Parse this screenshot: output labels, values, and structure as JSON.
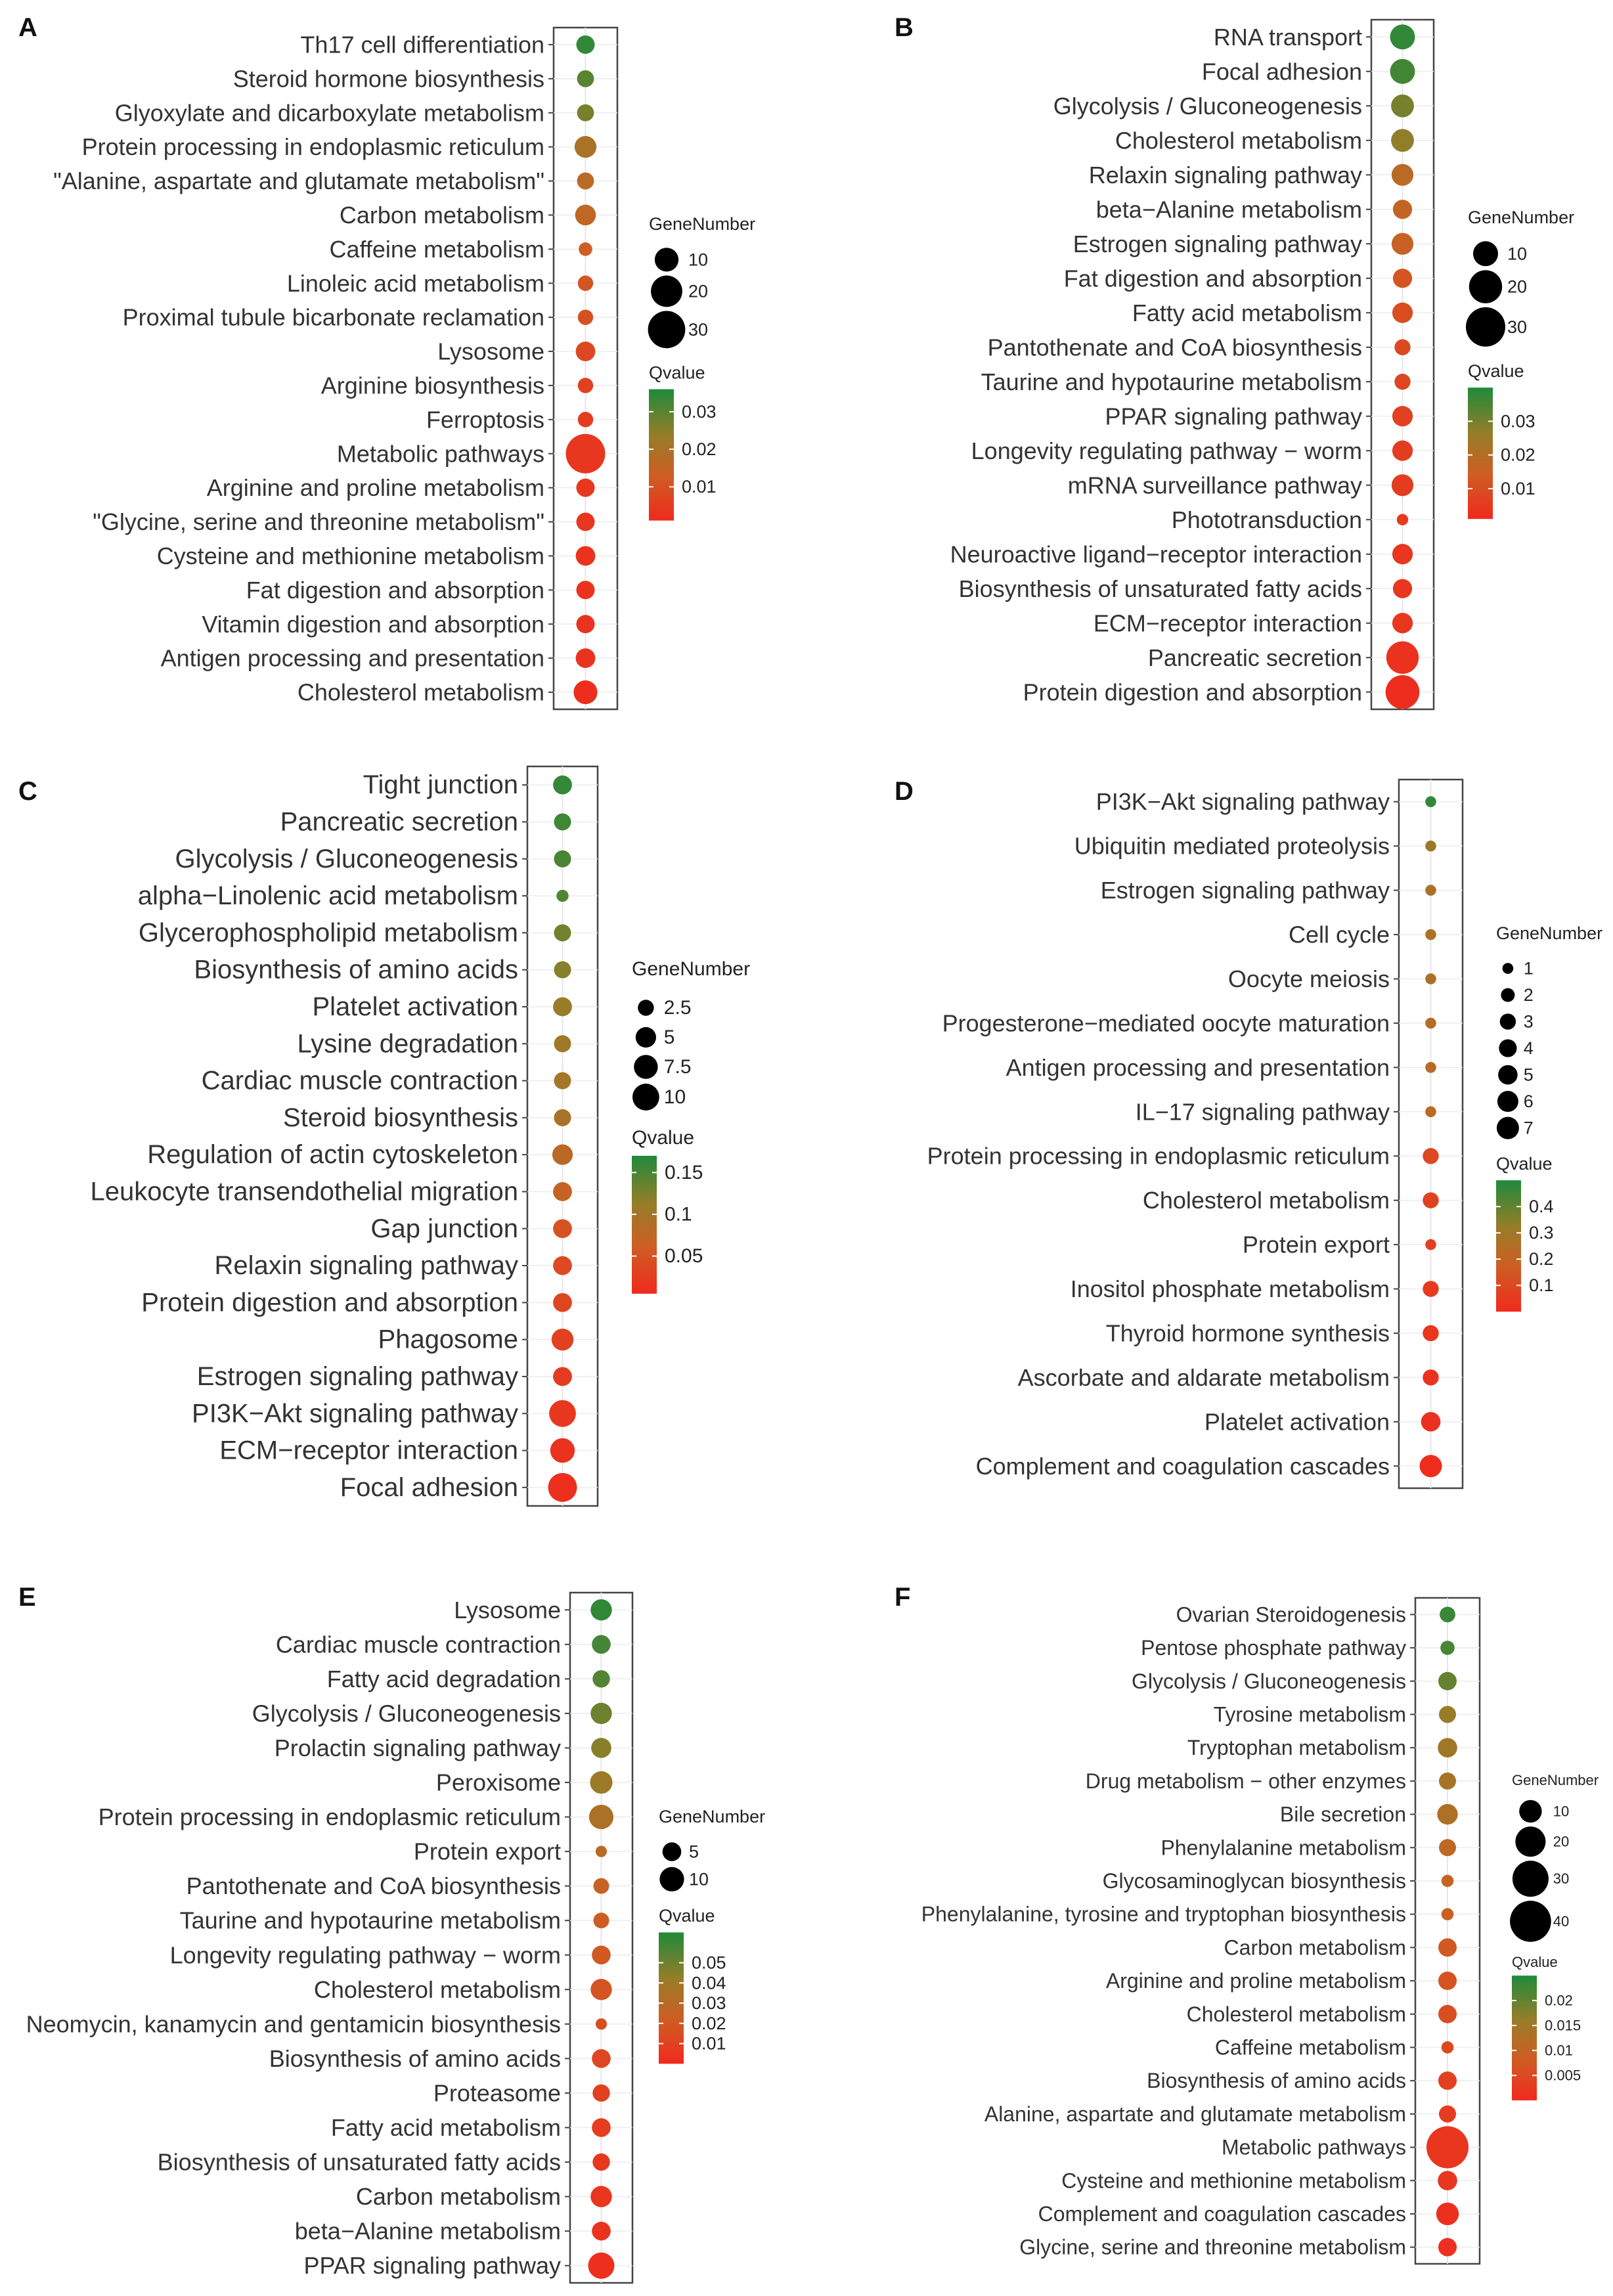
{
  "colors": {
    "high_q": "#1f8a3b",
    "mid_q": "#a8781f",
    "low_q": "#f02a1e",
    "axis": "#444444"
  },
  "legend_titles": {
    "size": "GeneNumber",
    "color": "Qvalue"
  },
  "chart_data": [
    {
      "panel": "A",
      "type": "scatter",
      "categories": [
        "Th17 cell differentiation",
        "Steroid hormone biosynthesis",
        "Glyoxylate and dicarboxylate metabolism",
        "Protein processing in endoplasmic reticulum",
        "\"Alanine, aspartate and glutamate metabolism\"",
        "Carbon metabolism",
        "Caffeine metabolism",
        "Linoleic acid metabolism",
        "Proximal tubule bicarbonate reclamation",
        "Lysosome",
        "Arginine biosynthesis",
        "Ferroptosis",
        "Metabolic pathways",
        "Arginine and proline metabolism",
        "\"Glycine, serine and threonine metabolism\"",
        "Cysteine and methionine metabolism",
        "Fat digestion and absorption",
        "Vitamin digestion and absorption",
        "Antigen processing and presentation",
        "Cholesterol metabolism"
      ],
      "gene_number": [
        5,
        4,
        4,
        8,
        4,
        7,
        2,
        3,
        3,
        6,
        3,
        3,
        34,
        5,
        5,
        6,
        5,
        5,
        6,
        10
      ],
      "qvalue": [
        0.034,
        0.03,
        0.027,
        0.02,
        0.017,
        0.016,
        0.013,
        0.011,
        0.01,
        0.008,
        0.006,
        0.005,
        0.004,
        0.004,
        0.004,
        0.003,
        0.003,
        0.003,
        0.003,
        0.002
      ],
      "size_legend": [
        10,
        20,
        30
      ],
      "size_max": 34,
      "color_ticks": [
        0.03,
        0.02,
        0.01
      ],
      "color_range": [
        0.001,
        0.036
      ]
    },
    {
      "panel": "B",
      "type": "scatter",
      "categories": [
        "RNA transport",
        "Focal adhesion",
        "Glycolysis / Gluconeogenesis",
        "Cholesterol metabolism",
        "Relaxin signaling pathway",
        "beta−Alanine metabolism",
        "Estrogen signaling pathway",
        "Fat digestion and absorption",
        "Fatty acid metabolism",
        "Pantothenate and CoA biosynthesis",
        "Taurine and hypotaurine metabolism",
        "PPAR signaling pathway",
        "Longevity regulating pathway − worm",
        "mRNA surveillance pathway",
        "Phototransduction",
        "Neuroactive ligand−receptor interaction",
        "Biosynthesis of unsaturated fatty acids",
        "ECM−receptor interaction",
        "Pancreatic secretion",
        "Protein digestion and absorption"
      ],
      "gene_number": [
        10,
        10,
        8,
        8,
        7,
        5,
        7,
        5,
        6,
        3,
        3,
        6,
        6,
        7,
        1,
        6,
        5,
        6,
        19,
        21
      ],
      "qvalue": [
        0.038,
        0.036,
        0.03,
        0.027,
        0.019,
        0.017,
        0.016,
        0.012,
        0.01,
        0.009,
        0.008,
        0.007,
        0.006,
        0.006,
        0.005,
        0.004,
        0.004,
        0.004,
        0.003,
        0.002
      ],
      "size_legend": [
        10,
        20,
        30
      ],
      "size_max": 30,
      "color_ticks": [
        0.03,
        0.02,
        0.01
      ],
      "color_range": [
        0.001,
        0.04
      ]
    },
    {
      "panel": "C",
      "type": "scatter",
      "categories": [
        "Tight junction",
        "Pancreatic secretion",
        "Glycolysis / Gluconeogenesis",
        "alpha−Linolenic acid metabolism",
        "Glycerophospholipid metabolism",
        "Biosynthesis of amino acids",
        "Platelet activation",
        "Lysine degradation",
        "Cardiac muscle contraction",
        "Steroid biosynthesis",
        "Regulation of actin cytoskeleton",
        "Leukocyte transendothelial migration",
        "Gap junction",
        "Relaxin signaling pathway",
        "Protein digestion and absorption",
        "Phagosome",
        "Estrogen signaling pathway",
        "PI3K−Akt signaling pathway",
        "ECM−receptor interaction",
        "Focal adhesion"
      ],
      "gene_number": [
        4,
        3,
        3,
        1,
        3,
        3,
        4,
        3,
        3,
        3,
        5,
        4,
        4,
        4,
        4,
        6,
        4,
        10,
        8,
        12
      ],
      "qvalue": [
        0.16,
        0.155,
        0.15,
        0.145,
        0.13,
        0.12,
        0.11,
        0.105,
        0.1,
        0.095,
        0.08,
        0.07,
        0.05,
        0.04,
        0.035,
        0.03,
        0.025,
        0.02,
        0.015,
        0.01
      ],
      "size_legend": [
        2.5,
        5.0,
        7.5,
        10.0
      ],
      "size_max": 12,
      "color_ticks": [
        0.15,
        0.1,
        0.05
      ],
      "color_range": [
        0.005,
        0.17
      ]
    },
    {
      "panel": "D",
      "type": "scatter",
      "categories": [
        "PI3K−Akt signaling pathway",
        "Ubiquitin mediated proteolysis",
        "Estrogen signaling pathway",
        "Cell cycle",
        "Oocyte meiosis",
        "Progesterone−mediated oocyte maturation",
        "Antigen processing and presentation",
        "IL−17 signaling pathway",
        "Protein processing in endoplasmic reticulum",
        "Cholesterol metabolism",
        "Protein export",
        "Inositol phosphate metabolism",
        "Thyroid hormone synthesis",
        "Ascorbate and aldarate metabolism",
        "Platelet activation",
        "Complement and coagulation cascades"
      ],
      "gene_number": [
        1,
        1,
        1,
        1,
        1,
        1,
        1,
        1,
        3,
        3,
        1,
        3,
        3,
        3,
        5,
        7
      ],
      "qvalue": [
        0.47,
        0.3,
        0.28,
        0.27,
        0.26,
        0.25,
        0.24,
        0.23,
        0.1,
        0.08,
        0.07,
        0.05,
        0.04,
        0.03,
        0.02,
        0.01
      ],
      "size_legend": [
        1,
        2,
        3,
        4,
        5,
        6,
        7
      ],
      "size_max": 7,
      "color_ticks": [
        0.4,
        0.3,
        0.2,
        0.1
      ],
      "color_range": [
        0.0,
        0.5
      ]
    },
    {
      "panel": "E",
      "type": "scatter",
      "categories": [
        "Lysosome",
        "Cardiac muscle contraction",
        "Fatty acid degradation",
        "Glycolysis / Gluconeogenesis",
        "Prolactin signaling pathway",
        "Peroxisome",
        "Protein processing in endoplasmic reticulum",
        "Protein export",
        "Pantothenate and CoA biosynthesis",
        "Taurine and hypotaurine metabolism",
        "Longevity regulating pathway − worm",
        "Cholesterol metabolism",
        "Neomycin, kanamycin and gentamicin biosynthesis",
        "Biosynthesis of amino acids",
        "Proteasome",
        "Fatty acid metabolism",
        "Biosynthesis of unsaturated fatty acids",
        "Carbon metabolism",
        "beta−Alanine metabolism",
        "PPAR signaling pathway"
      ],
      "gene_number": [
        7,
        5,
        4,
        7,
        6,
        8,
        10,
        1,
        3,
        3,
        5,
        7,
        1,
        5,
        4,
        5,
        4,
        7,
        5,
        12
      ],
      "qvalue": [
        0.062,
        0.058,
        0.055,
        0.05,
        0.045,
        0.04,
        0.035,
        0.03,
        0.025,
        0.022,
        0.02,
        0.018,
        0.015,
        0.012,
        0.01,
        0.008,
        0.006,
        0.005,
        0.004,
        0.002
      ],
      "size_legend": [
        5,
        10
      ],
      "size_max": 12,
      "color_ticks": [
        0.05,
        0.04,
        0.03,
        0.02,
        0.01
      ],
      "color_range": [
        0.0,
        0.065
      ]
    },
    {
      "panel": "F",
      "type": "scatter",
      "categories": [
        "Ovarian Steroidogenesis",
        "Pentose phosphate pathway",
        "Glycolysis / Gluconeogenesis",
        "Tyrosine metabolism",
        "Tryptophan metabolism",
        "Drug metabolism − other enzymes",
        "Bile secretion",
        "Phenylalanine metabolism",
        "Glycosaminoglycan biosynthesis",
        "Phenylalanine, tyrosine and tryptophan biosynthesis",
        "Carbon metabolism",
        "Arginine and proline metabolism",
        "Cholesterol metabolism",
        "Caffeine metabolism",
        "Biosynthesis of amino acids",
        "Alanine, aspartate and glutamate metabolism",
        "Metabolic pathways",
        "Cysteine and methionine metabolism",
        "Complement and coagulation cascades",
        "Glycine, serine and threonine metabolism"
      ],
      "gene_number": [
        4,
        3,
        6,
        5,
        7,
        5,
        8,
        5,
        2,
        2,
        6,
        6,
        6,
        2,
        6,
        5,
        42,
        7,
        10,
        6
      ],
      "qvalue": [
        0.023,
        0.022,
        0.02,
        0.016,
        0.015,
        0.014,
        0.013,
        0.011,
        0.01,
        0.009,
        0.008,
        0.007,
        0.006,
        0.005,
        0.004,
        0.003,
        0.002,
        0.002,
        0.001,
        0.001
      ],
      "size_legend": [
        10,
        20,
        30,
        40
      ],
      "size_max": 42,
      "color_ticks": [
        0.02,
        0.015,
        0.01,
        0.005
      ],
      "color_range": [
        0.0,
        0.025
      ]
    }
  ]
}
